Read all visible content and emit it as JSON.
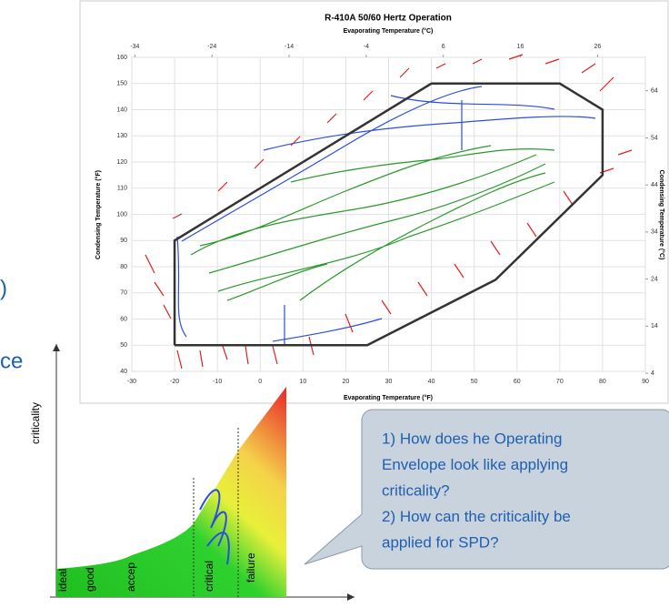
{
  "chart_data": {
    "type": "line",
    "title": "R-410A 50/60 Hertz Operation",
    "x_label": "Evaporating Temperature (°F)",
    "x2_label": "Evaporating Temperature (°C)",
    "y_label": "Condensing Temperature (°F)",
    "y2_label": "Condensing Temperature (°C)",
    "x": [
      -20,
      25,
      55,
      80,
      80,
      70,
      40,
      -20,
      -20
    ],
    "values": [
      50,
      50,
      75,
      115,
      140,
      150,
      150,
      90,
      50
    ],
    "color": "#333333",
    "xlim": [
      -30,
      90
    ],
    "xticks": [
      -30,
      -20,
      -10,
      0,
      10,
      20,
      30,
      40,
      50,
      60,
      70,
      80,
      90
    ],
    "ylim": [
      40,
      160
    ],
    "yticks": [
      40,
      50,
      60,
      70,
      80,
      90,
      100,
      110,
      120,
      130,
      140,
      150,
      160
    ],
    "x2lim": [
      -34.4,
      32.2
    ],
    "x2ticks": [
      -34,
      -24,
      -14,
      -4,
      6,
      16,
      26
    ],
    "y2lim": [
      4.4,
      71.1
    ],
    "y2ticks": [
      4,
      14,
      24,
      34,
      44,
      54,
      64
    ],
    "grid": true
  },
  "slide_fragments": [
    ")",
    "ce"
  ],
  "criticality_diagram": {
    "y_label": "criticality",
    "zones": [
      "ideal",
      "good",
      "accep",
      "critical",
      "failure"
    ]
  },
  "callout": {
    "lines": [
      "1) How does he Operating",
      "Envelope look like applying",
      "criticality?",
      "2) How can the criticality be",
      "applied for SPD?"
    ]
  }
}
